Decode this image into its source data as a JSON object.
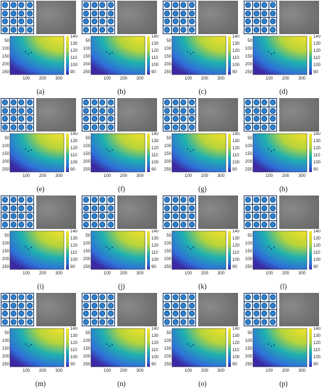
{
  "panels": [
    {
      "caption": "(a)"
    },
    {
      "caption": "(b)"
    },
    {
      "caption": "(c)"
    },
    {
      "caption": "(d)"
    },
    {
      "caption": "(e)"
    },
    {
      "caption": "(f)"
    },
    {
      "caption": "(g)"
    },
    {
      "caption": "(h)"
    },
    {
      "caption": "(i)"
    },
    {
      "caption": "(j)"
    },
    {
      "caption": "(k)"
    },
    {
      "caption": "(l)"
    },
    {
      "caption": "(m)"
    },
    {
      "caption": "(n)"
    },
    {
      "caption": "(o)"
    },
    {
      "caption": "(p)"
    }
  ],
  "heatmap": {
    "y_ticks": [
      "50",
      "100",
      "150",
      "200",
      "250"
    ],
    "x_ticks": [
      "100",
      "200",
      "300"
    ],
    "colorbar_ticks": [
      "140",
      "130",
      "120",
      "110",
      "100",
      "90"
    ]
  },
  "colors": {
    "low": "#3b2aa3",
    "mid": "#1fb0b0",
    "high": "#f6e32a",
    "pattern_border": "#1c3a63",
    "dot": "#2d83d4"
  }
}
